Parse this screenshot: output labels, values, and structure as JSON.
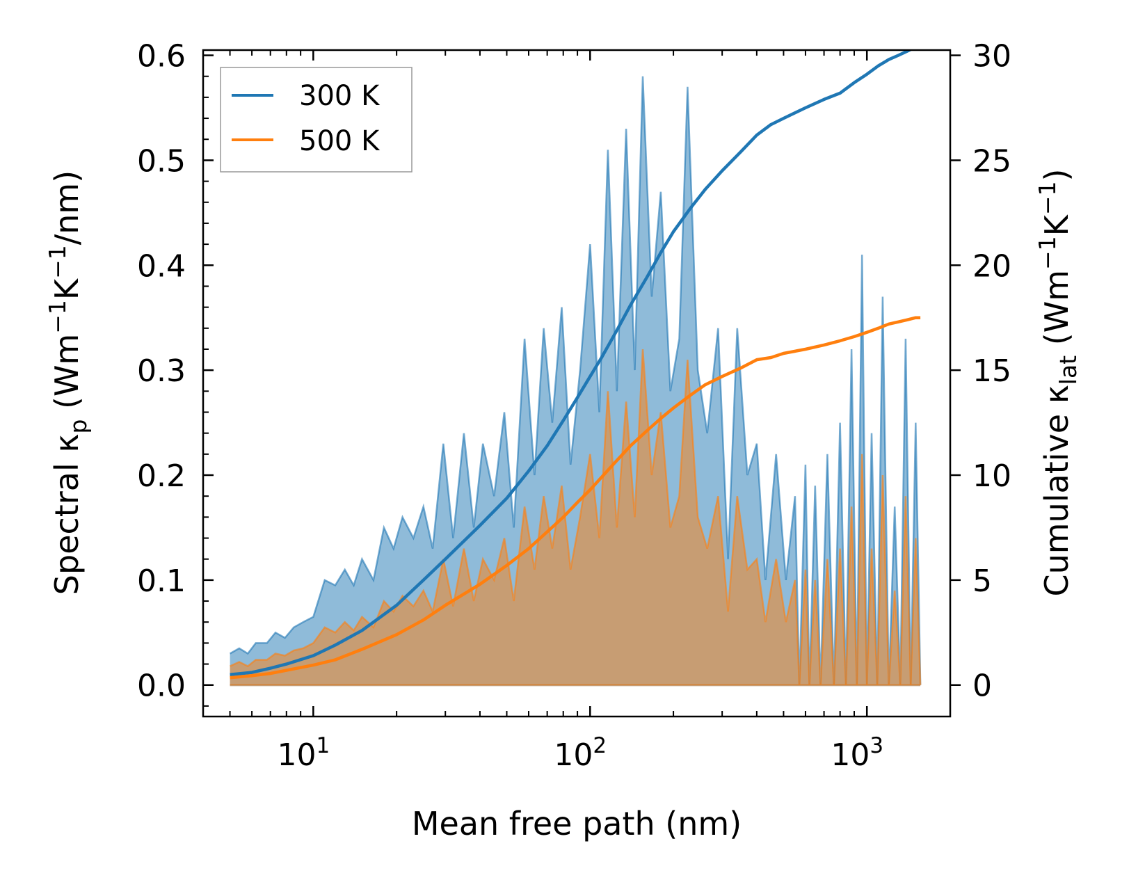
{
  "chart_data": {
    "type": "line",
    "xscale": "log",
    "xlim": [
      4,
      2000
    ],
    "ylim_left": [
      -0.03,
      0.605
    ],
    "ylim_right": [
      -1.5,
      30.25
    ],
    "xlabel": "Mean free path (nm)",
    "ylabel_left": {
      "prefix": "Spectral κ",
      "sub": "p",
      "suffix": " (Wm",
      "sup1": "−1",
      "mid": "K",
      "sup2": "−1",
      "end": "/nm)"
    },
    "ylabel_right": {
      "prefix": "Cumulative κ",
      "sub": "lat",
      "suffix": " (Wm",
      "sup1": "−1",
      "mid": "K",
      "sup2": "−1",
      "end": ")"
    },
    "x_ticks": [
      {
        "value": 10,
        "base": "10",
        "exp": "1"
      },
      {
        "value": 100,
        "base": "10",
        "exp": "2"
      },
      {
        "value": 1000,
        "base": "10",
        "exp": "3"
      }
    ],
    "y_left_ticks": [
      "0.0",
      "0.1",
      "0.2",
      "0.3",
      "0.4",
      "0.5",
      "0.6"
    ],
    "y_right_ticks": [
      "0",
      "5",
      "10",
      "15",
      "20",
      "25",
      "30"
    ],
    "legend": {
      "location": "top-left",
      "entries": [
        {
          "label": "300 K",
          "color": "#1f77b4"
        },
        {
          "label": "500 K",
          "color": "#ff7f0e"
        }
      ]
    },
    "series": [
      {
        "name": "300 K",
        "color": "#1f77b4",
        "spectral_x": [
          5,
          5.4,
          5.8,
          6.2,
          6.8,
          7.3,
          7.9,
          8.5,
          9.2,
          10,
          11,
          12,
          13,
          14,
          15,
          16.5,
          18,
          19.5,
          21,
          23,
          25,
          27,
          29.5,
          32,
          35,
          38,
          41,
          45,
          49,
          53,
          58,
          63,
          68,
          73,
          79,
          85,
          92,
          100,
          108,
          116,
          125,
          135,
          145,
          155,
          167,
          180,
          195,
          210,
          225,
          245,
          265,
          290,
          315,
          340,
          370,
          400,
          430,
          470,
          510,
          550,
          570,
          600,
          620,
          650,
          680,
          720,
          760,
          800,
          840,
          880,
          920,
          960,
          1000,
          1040,
          1090,
          1140,
          1200,
          1260,
          1320,
          1380,
          1440,
          1500,
          1560
        ],
        "spectral_y": [
          0.03,
          0.035,
          0.03,
          0.04,
          0.04,
          0.05,
          0.045,
          0.055,
          0.06,
          0.065,
          0.1,
          0.095,
          0.11,
          0.095,
          0.12,
          0.1,
          0.15,
          0.13,
          0.16,
          0.14,
          0.17,
          0.13,
          0.23,
          0.14,
          0.24,
          0.15,
          0.23,
          0.18,
          0.26,
          0.15,
          0.33,
          0.2,
          0.34,
          0.25,
          0.36,
          0.21,
          0.3,
          0.42,
          0.26,
          0.51,
          0.28,
          0.53,
          0.3,
          0.58,
          0.37,
          0.47,
          0.28,
          0.33,
          0.57,
          0.3,
          0.24,
          0.34,
          0.12,
          0.34,
          0.2,
          0.23,
          0.1,
          0.22,
          0.1,
          0.18,
          0.0,
          0.21,
          0.0,
          0.19,
          0.0,
          0.22,
          0.0,
          0.25,
          0.0,
          0.32,
          0.0,
          0.41,
          0.0,
          0.24,
          0.0,
          0.37,
          0.0,
          0.17,
          0.0,
          0.33,
          0.0,
          0.25,
          0.0
        ],
        "cumulative_x": [
          5,
          6,
          7,
          8,
          10,
          12,
          15,
          20,
          25,
          30,
          40,
          50,
          60,
          70,
          80,
          90,
          100,
          110,
          125,
          140,
          160,
          180,
          200,
          230,
          260,
          300,
          350,
          400,
          450,
          500,
          600,
          700,
          800,
          900,
          1000,
          1100,
          1200,
          1300,
          1400,
          1500,
          1560
        ],
        "cumulative_y": [
          0.5,
          0.6,
          0.8,
          1.0,
          1.4,
          1.9,
          2.6,
          3.8,
          5.0,
          6.0,
          7.6,
          8.9,
          10.2,
          11.4,
          12.6,
          13.7,
          14.7,
          15.6,
          16.9,
          18.1,
          19.4,
          20.6,
          21.6,
          22.7,
          23.6,
          24.5,
          25.4,
          26.2,
          26.7,
          27.0,
          27.5,
          27.9,
          28.2,
          28.7,
          29.1,
          29.5,
          29.8,
          30.0,
          30.2,
          30.4,
          30.4
        ]
      },
      {
        "name": "500 K",
        "color": "#ff7f0e",
        "spectral_x": [
          5,
          5.4,
          5.8,
          6.2,
          6.8,
          7.3,
          7.9,
          8.5,
          9.2,
          10,
          11,
          12,
          13,
          14,
          15,
          16.5,
          18,
          19.5,
          21,
          23,
          25,
          27,
          29.5,
          32,
          35,
          38,
          41,
          45,
          49,
          53,
          58,
          63,
          68,
          73,
          79,
          85,
          92,
          100,
          108,
          116,
          125,
          135,
          145,
          155,
          167,
          180,
          195,
          210,
          225,
          245,
          265,
          290,
          315,
          340,
          370,
          400,
          430,
          470,
          510,
          550,
          570,
          600,
          620,
          650,
          680,
          720,
          760,
          800,
          840,
          880,
          920,
          960,
          1000,
          1040,
          1090,
          1140,
          1200,
          1260,
          1320,
          1380,
          1440,
          1500,
          1560
        ],
        "spectral_y": [
          0.018,
          0.022,
          0.018,
          0.024,
          0.024,
          0.03,
          0.028,
          0.033,
          0.035,
          0.04,
          0.055,
          0.05,
          0.06,
          0.052,
          0.065,
          0.055,
          0.08,
          0.07,
          0.085,
          0.075,
          0.09,
          0.07,
          0.12,
          0.075,
          0.13,
          0.08,
          0.12,
          0.1,
          0.14,
          0.08,
          0.17,
          0.11,
          0.18,
          0.13,
          0.19,
          0.11,
          0.16,
          0.22,
          0.14,
          0.28,
          0.15,
          0.27,
          0.16,
          0.32,
          0.2,
          0.26,
          0.15,
          0.18,
          0.31,
          0.16,
          0.13,
          0.18,
          0.07,
          0.18,
          0.11,
          0.12,
          0.06,
          0.12,
          0.06,
          0.1,
          0.0,
          0.11,
          0.0,
          0.1,
          0.0,
          0.12,
          0.0,
          0.13,
          0.0,
          0.17,
          0.0,
          0.22,
          0.0,
          0.13,
          0.0,
          0.2,
          0.0,
          0.09,
          0.0,
          0.18,
          0.0,
          0.14,
          0.0
        ],
        "cumulative_x": [
          5,
          6,
          7,
          8,
          10,
          12,
          15,
          20,
          25,
          30,
          40,
          50,
          60,
          70,
          80,
          90,
          100,
          110,
          125,
          140,
          160,
          180,
          200,
          230,
          260,
          300,
          350,
          400,
          450,
          500,
          600,
          700,
          800,
          900,
          1000,
          1100,
          1200,
          1300,
          1400,
          1500,
          1560
        ],
        "cumulative_y": [
          0.35,
          0.45,
          0.55,
          0.7,
          0.95,
          1.2,
          1.7,
          2.4,
          3.1,
          3.8,
          4.8,
          5.7,
          6.5,
          7.3,
          8.0,
          8.7,
          9.3,
          9.9,
          10.7,
          11.4,
          12.1,
          12.7,
          13.2,
          13.8,
          14.3,
          14.7,
          15.1,
          15.5,
          15.6,
          15.8,
          16.0,
          16.2,
          16.4,
          16.6,
          16.8,
          17.0,
          17.2,
          17.3,
          17.4,
          17.5,
          17.5
        ]
      }
    ]
  }
}
